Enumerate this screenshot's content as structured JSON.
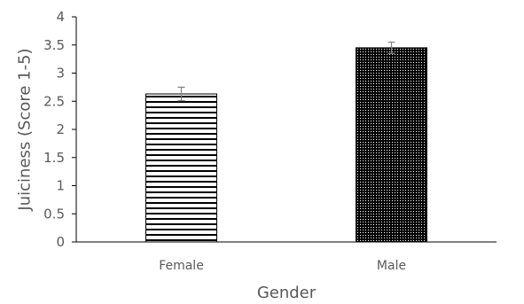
{
  "chart_data": {
    "type": "bar",
    "title": "",
    "xlabel": "Gender",
    "ylabel": "Juiciness (Score 1-5)",
    "ylim": [
      0,
      4
    ],
    "yticks": [
      "0",
      "0.5",
      "1",
      "1.5",
      "2",
      "2.5",
      "3",
      "3.5",
      "4"
    ],
    "categories": [
      "Female",
      "Male"
    ],
    "values": [
      2.63,
      3.45
    ],
    "errors": [
      0.12,
      0.1
    ],
    "patterns": [
      "horizontal-lines",
      "dense-dots"
    ],
    "grid": false,
    "legend": "none",
    "colors": {
      "bar_fill": "#000000",
      "background": "#ffffff",
      "axis": "#000000",
      "text": "#595959",
      "error_bar": "#808080"
    }
  }
}
